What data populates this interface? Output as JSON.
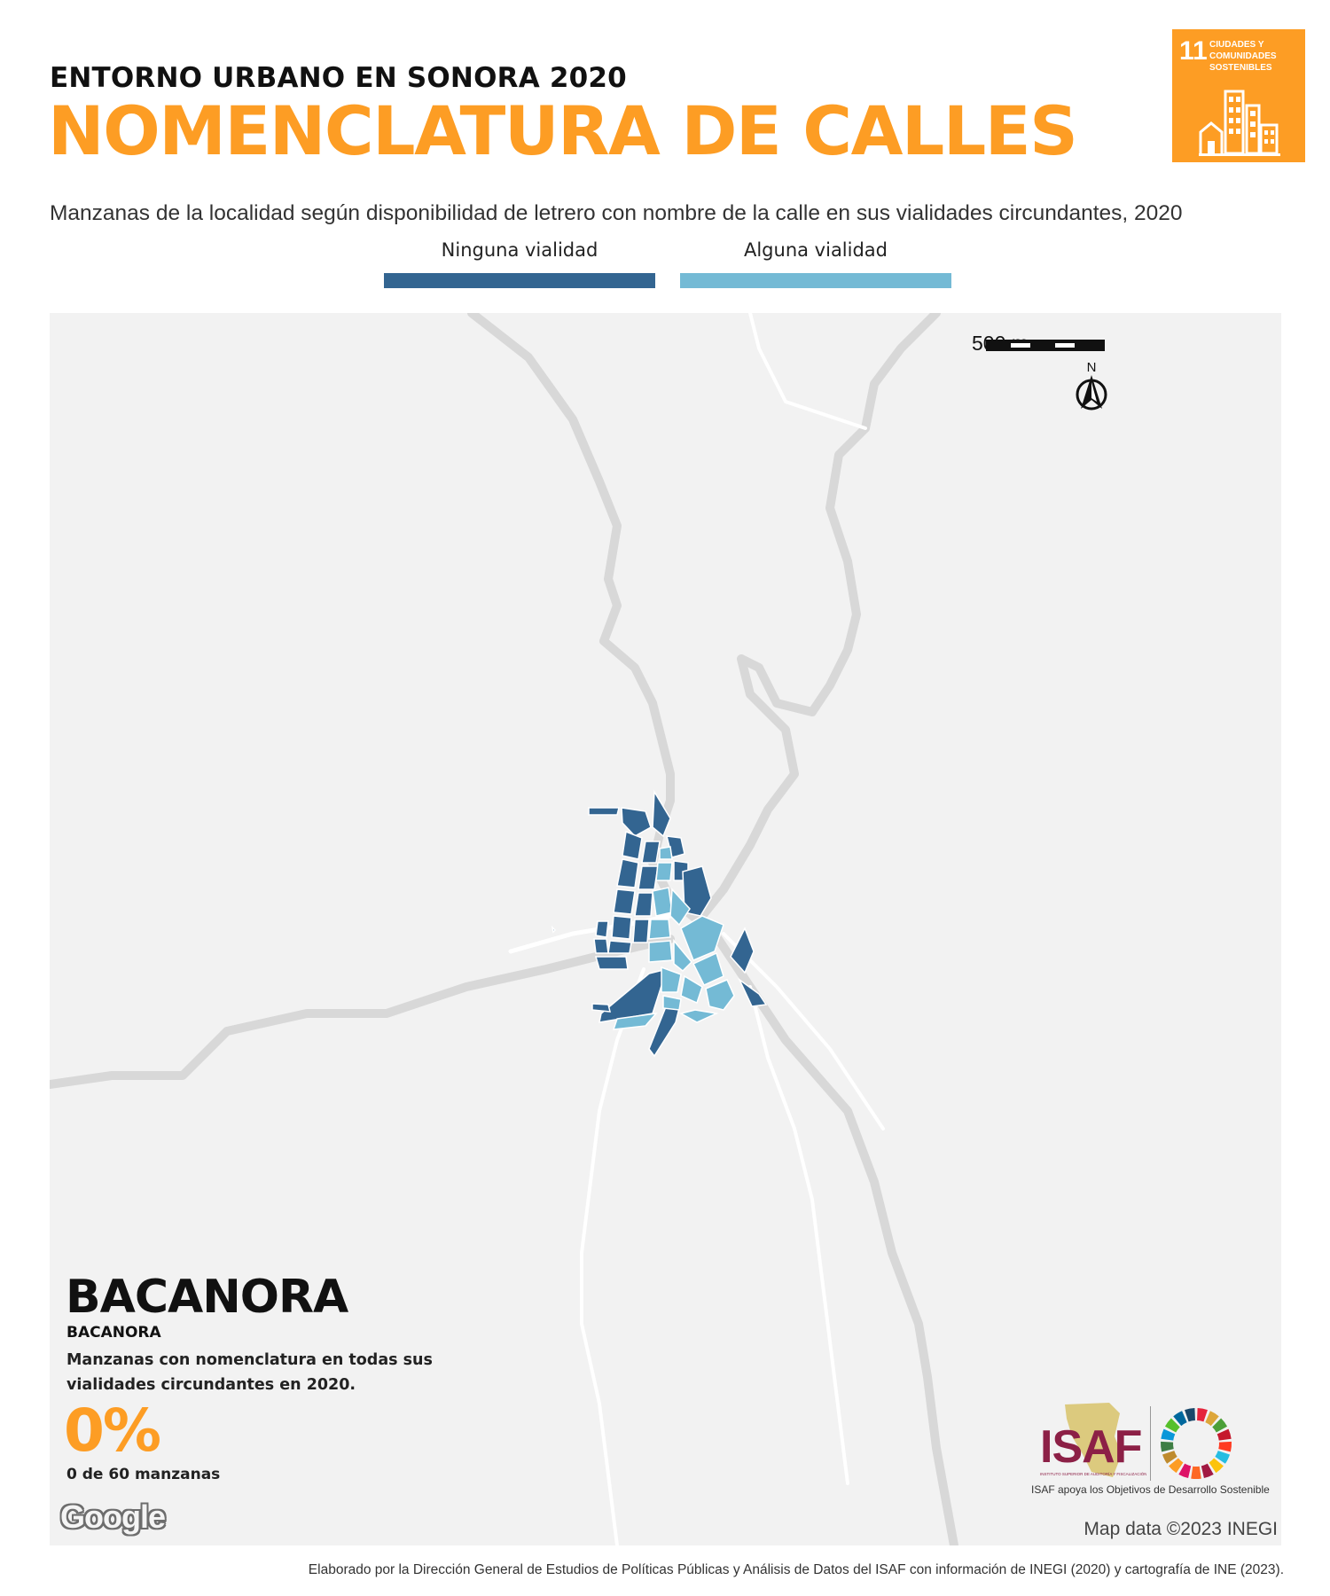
{
  "header": {
    "subtitle": "ENTORNO URBANO EN SONORA 2020",
    "title": "NOMENCLATURA DE CALLES",
    "description": "Manzanas de la localidad según disponibilidad de letrero con nombre de la calle en sus vialidades circundantes, 2020"
  },
  "sdg_badge": {
    "number": "11",
    "text": "CIUDADES Y COMUNIDADES SOSTENIBLES",
    "color": "#fd9d24",
    "icon": "city-buildings-icon"
  },
  "legend": [
    {
      "label": "Ninguna vialidad",
      "color": "#336591"
    },
    {
      "label": "Alguna vialidad",
      "color": "#74bad5"
    }
  ],
  "map": {
    "scale_label": "500 m",
    "north_label": "N",
    "attribution": "Map data ©2023 INEGI",
    "google_logo": "Google",
    "background_color": "#f2f2f2",
    "road_color": "#dcdcdc"
  },
  "locality": {
    "name": "BACANORA",
    "municipality": "BACANORA",
    "description": "Manzanas con nomenclatura en todas sus vialidades circundantes en 2020.",
    "percentage": "0%",
    "count_text": "0 de 60 manzanas",
    "percentage_value": 0,
    "blocks_with_signage": 0,
    "total_blocks": 60
  },
  "logos": {
    "isaf_word": "ISAF",
    "isaf_fullname": "INSTITUTO SUPERIOR DE AUDITORÍA Y FISCALIZACIÓN",
    "isaf_caption": "ISAF apoya los Objetivos de Desarrollo Sostenible",
    "sdg_wheel_icon": "sdg-wheel-icon"
  },
  "footer": {
    "source": "Elaborado por la Dirección General de Estudios de Políticas Públicas y Análisis de Datos del ISAF con información de INEGI (2020) y cartografía de INE (2023)."
  }
}
